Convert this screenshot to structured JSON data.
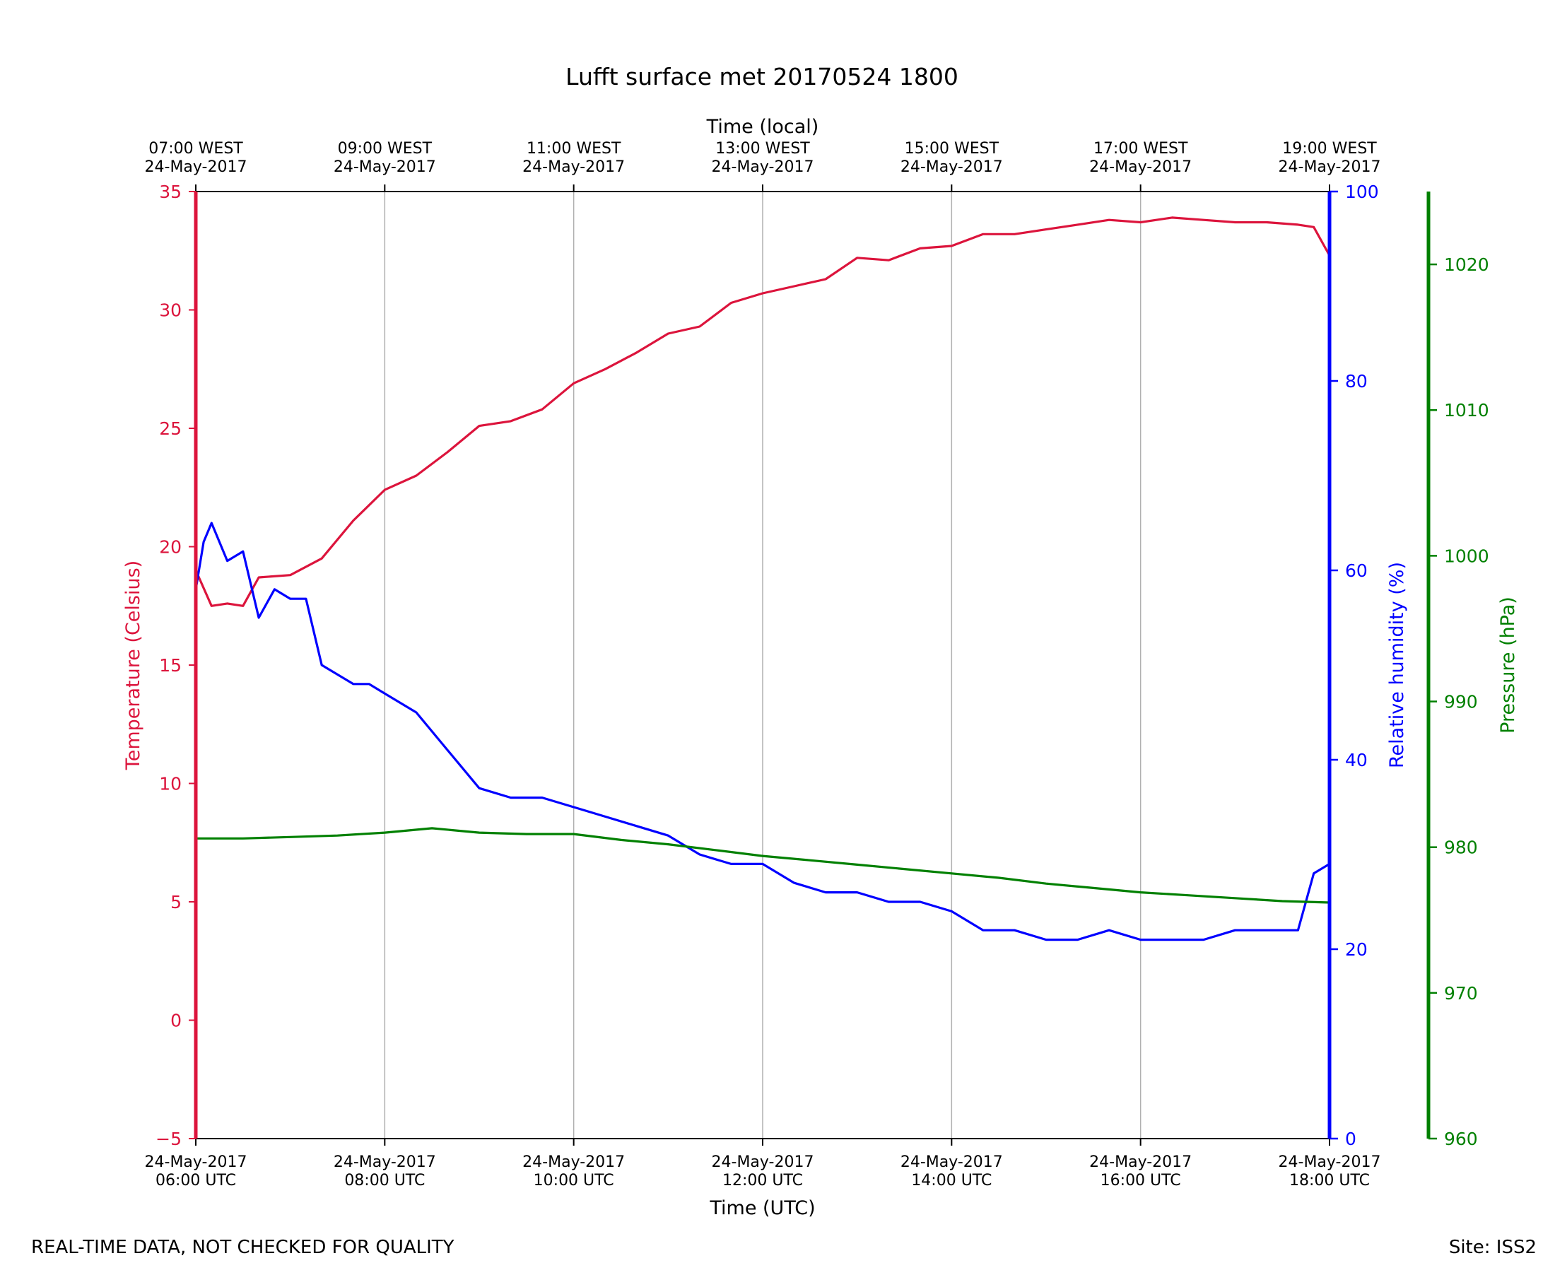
{
  "title": "Lufft surface met 20170524 1800",
  "footer": {
    "left": "REAL-TIME DATA, NOT CHECKED FOR QUALITY",
    "right": "Site: ISS2"
  },
  "colors": {
    "temperature": "#dc143c",
    "humidity": "#0000ff",
    "pressure": "#008000",
    "grid": "#b0b0b0",
    "axis": "#000000"
  },
  "chart_data": {
    "type": "line",
    "title": "Lufft surface met 20170524 1800",
    "grid": true,
    "xlabel_bottom": "Time (UTC)",
    "xlabel_top": "Time (local)",
    "x_range": [
      "2017-05-24 06:00 UTC",
      "2017-05-24 18:00 UTC"
    ],
    "x_ticks_bottom": [
      {
        "date": "24-May-2017",
        "time": "06:00 UTC"
      },
      {
        "date": "24-May-2017",
        "time": "08:00 UTC"
      },
      {
        "date": "24-May-2017",
        "time": "10:00 UTC"
      },
      {
        "date": "24-May-2017",
        "time": "12:00 UTC"
      },
      {
        "date": "24-May-2017",
        "time": "14:00 UTC"
      },
      {
        "date": "24-May-2017",
        "time": "16:00 UTC"
      },
      {
        "date": "24-May-2017",
        "time": "18:00 UTC"
      }
    ],
    "x_ticks_top": [
      {
        "time": "07:00 WEST",
        "date": "24-May-2017"
      },
      {
        "time": "09:00 WEST",
        "date": "24-May-2017"
      },
      {
        "time": "11:00 WEST",
        "date": "24-May-2017"
      },
      {
        "time": "13:00 WEST",
        "date": "24-May-2017"
      },
      {
        "time": "15:00 WEST",
        "date": "24-May-2017"
      },
      {
        "time": "17:00 WEST",
        "date": "24-May-2017"
      },
      {
        "time": "19:00 WEST",
        "date": "24-May-2017"
      }
    ],
    "axes": {
      "temperature": {
        "label": "Temperature (Celsius)",
        "range": [
          -5,
          35
        ],
        "ticks": [
          "−5",
          "0",
          "5",
          "10",
          "15",
          "20",
          "25",
          "30",
          "35"
        ]
      },
      "humidity": {
        "label": "Relative humidity (%)",
        "range": [
          0,
          100
        ],
        "ticks": [
          "0",
          "20",
          "40",
          "60",
          "80",
          "100"
        ]
      },
      "pressure": {
        "label": "Pressure (hPa)",
        "range": [
          960,
          1025
        ],
        "ticks": [
          "960",
          "970",
          "980",
          "990",
          "1000",
          "1010",
          "1020"
        ]
      }
    },
    "series": [
      {
        "name": "Temperature (Celsius)",
        "axis": "temperature",
        "x": [
          "06:00",
          "06:10",
          "06:20",
          "06:30",
          "06:40",
          "07:00",
          "07:20",
          "07:40",
          "08:00",
          "08:20",
          "08:40",
          "09:00",
          "09:20",
          "09:40",
          "10:00",
          "10:20",
          "10:40",
          "11:00",
          "11:20",
          "11:40",
          "12:00",
          "12:20",
          "12:40",
          "13:00",
          "13:20",
          "13:40",
          "14:00",
          "14:20",
          "14:40",
          "15:00",
          "15:20",
          "15:40",
          "16:00",
          "16:20",
          "16:40",
          "17:00",
          "17:20",
          "17:40",
          "17:50",
          "18:00"
        ],
        "values": [
          19.0,
          17.5,
          17.6,
          17.5,
          18.7,
          18.8,
          19.5,
          21.1,
          22.4,
          23.0,
          24.0,
          25.1,
          25.3,
          25.8,
          26.9,
          27.5,
          28.2,
          29.0,
          29.3,
          30.3,
          30.7,
          31.0,
          31.3,
          32.2,
          32.1,
          32.6,
          32.7,
          33.2,
          33.2,
          33.4,
          33.6,
          33.8,
          33.7,
          33.9,
          33.8,
          33.7,
          33.7,
          33.6,
          33.5,
          32.3
        ]
      },
      {
        "name": "Relative humidity (%)",
        "axis": "humidity",
        "x": [
          "06:00",
          "06:05",
          "06:10",
          "06:20",
          "06:30",
          "06:40",
          "06:50",
          "07:00",
          "07:10",
          "07:20",
          "07:30",
          "07:40",
          "07:50",
          "08:00",
          "08:20",
          "08:40",
          "09:00",
          "09:20",
          "09:40",
          "10:00",
          "10:20",
          "10:40",
          "11:00",
          "11:20",
          "11:40",
          "12:00",
          "12:20",
          "12:40",
          "13:00",
          "13:20",
          "13:40",
          "14:00",
          "14:20",
          "14:40",
          "15:00",
          "15:20",
          "15:40",
          "16:00",
          "16:20",
          "16:40",
          "17:00",
          "17:20",
          "17:40",
          "17:50",
          "18:00"
        ],
        "values": [
          58,
          63,
          65,
          61,
          62,
          55,
          58,
          57,
          57,
          50,
          49,
          48,
          48,
          47,
          45,
          41,
          37,
          36,
          36,
          35,
          34,
          33,
          32,
          30,
          29,
          29,
          27,
          26,
          26,
          25,
          25,
          24,
          22,
          22,
          21,
          21,
          22,
          21,
          21,
          21,
          22,
          22,
          22,
          28,
          29
        ]
      },
      {
        "name": "Pressure (hPa)",
        "axis": "pressure",
        "x": [
          "06:00",
          "06:30",
          "07:00",
          "07:30",
          "08:00",
          "08:30",
          "09:00",
          "09:30",
          "10:00",
          "10:30",
          "11:00",
          "11:30",
          "12:00",
          "12:30",
          "13:00",
          "13:30",
          "14:00",
          "14:30",
          "15:00",
          "15:30",
          "16:00",
          "16:30",
          "17:00",
          "17:30",
          "18:00"
        ],
        "values": [
          980.6,
          980.6,
          980.7,
          980.8,
          981.0,
          981.3,
          981.0,
          980.9,
          980.9,
          980.5,
          980.2,
          979.8,
          979.4,
          979.1,
          978.8,
          978.5,
          978.2,
          977.9,
          977.5,
          977.2,
          976.9,
          976.7,
          976.5,
          976.3,
          976.2
        ]
      }
    ]
  }
}
